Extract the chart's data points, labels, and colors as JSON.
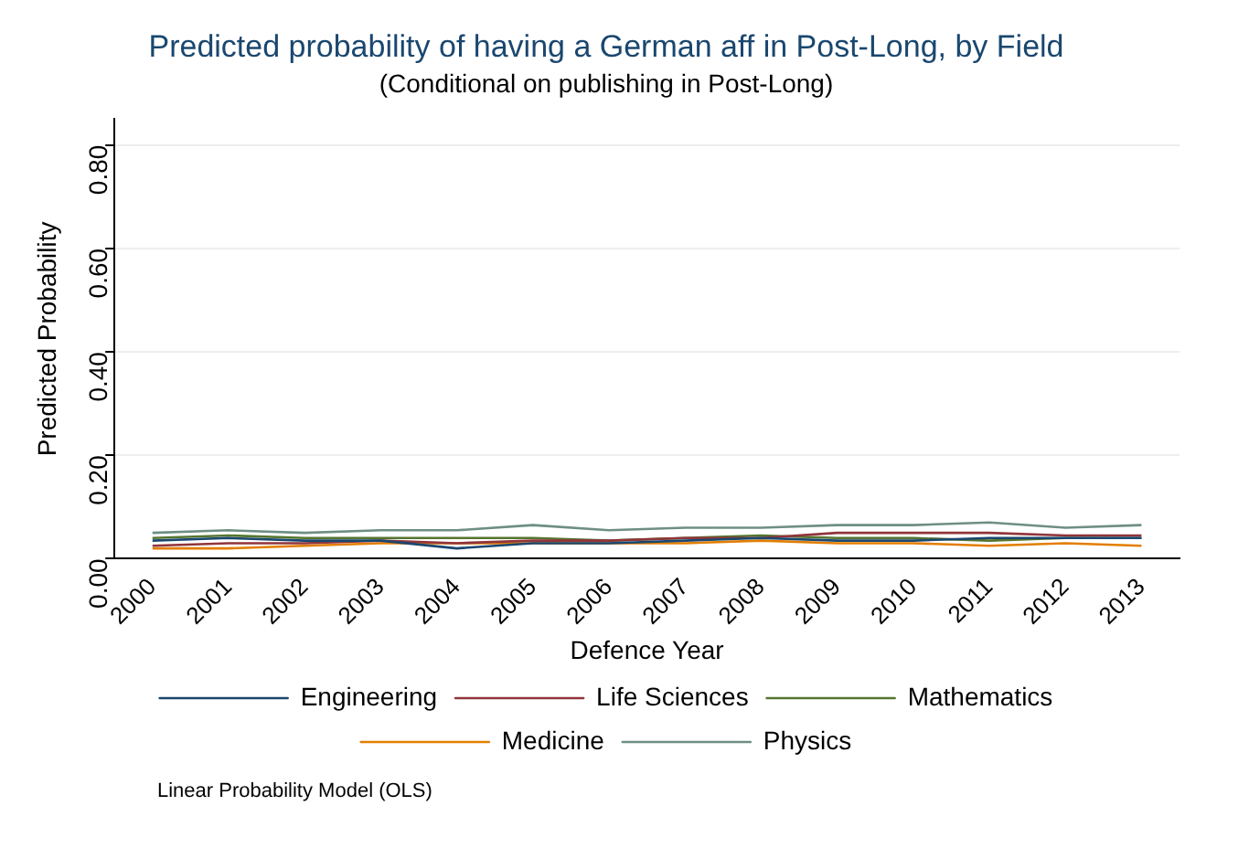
{
  "chart_data": {
    "type": "line",
    "title": "Predicted probability of having a German aff in Post-Long, by Field",
    "subtitle": "(Conditional on publishing in Post-Long)",
    "xlabel": "Defence Year",
    "ylabel": "Predicted Probability",
    "categories": [
      "2000",
      "2001",
      "2002",
      "2003",
      "2004",
      "2005",
      "2006",
      "2007",
      "2008",
      "2009",
      "2010",
      "2011",
      "2012",
      "2013"
    ],
    "series": [
      {
        "name": "Engineering",
        "color": "#1a476f",
        "values": [
          0.035,
          0.04,
          0.035,
          0.035,
          0.02,
          0.03,
          0.03,
          0.035,
          0.04,
          0.035,
          0.035,
          0.04,
          0.04,
          0.04
        ]
      },
      {
        "name": "Life Sciences",
        "color": "#90353b",
        "values": [
          0.025,
          0.03,
          0.03,
          0.035,
          0.03,
          0.035,
          0.035,
          0.04,
          0.04,
          0.05,
          0.05,
          0.05,
          0.045,
          0.045
        ]
      },
      {
        "name": "Mathematics",
        "color": "#55752f",
        "values": [
          0.04,
          0.045,
          0.04,
          0.04,
          0.04,
          0.04,
          0.035,
          0.04,
          0.045,
          0.04,
          0.04,
          0.035,
          0.04,
          0.04
        ]
      },
      {
        "name": "Medicine",
        "color": "#e37e00",
        "values": [
          0.02,
          0.02,
          0.025,
          0.03,
          0.03,
          0.03,
          0.03,
          0.03,
          0.035,
          0.03,
          0.03,
          0.025,
          0.03,
          0.025
        ]
      },
      {
        "name": "Physics",
        "color": "#6e8e84",
        "values": [
          0.05,
          0.055,
          0.05,
          0.055,
          0.055,
          0.065,
          0.055,
          0.06,
          0.06,
          0.065,
          0.065,
          0.07,
          0.06,
          0.065
        ]
      }
    ],
    "ylim": [
      0,
      0.85
    ],
    "yticks": [
      {
        "value": 0,
        "label": "0.00"
      },
      {
        "value": 0.2,
        "label": "0.20"
      },
      {
        "value": 0.4,
        "label": "0.40"
      },
      {
        "value": 0.6,
        "label": "0.60"
      },
      {
        "value": 0.8,
        "label": "0.80"
      }
    ],
    "grid": "y",
    "legend": "bottom",
    "marker": "none",
    "line_style": "solid",
    "annotations": [
      "Linear Probability Model (OLS)"
    ]
  }
}
